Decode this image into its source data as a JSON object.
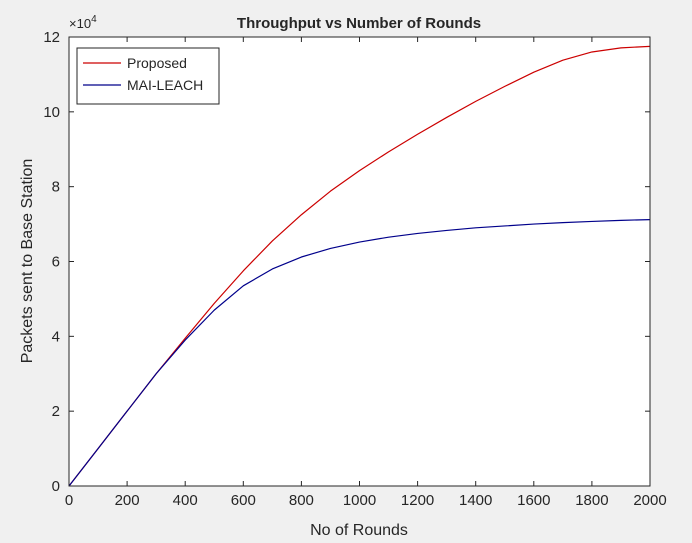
{
  "chart_data": {
    "type": "line",
    "title": "Throughput vs Number of Rounds",
    "xlabel": "No of Rounds",
    "ylabel": "Packets sent to Base Station",
    "y_exponent_base": "10",
    "y_exponent_power": "4",
    "xlim": [
      0,
      2000
    ],
    "ylim": [
      0,
      120000
    ],
    "x_ticks": [
      0,
      200,
      400,
      600,
      800,
      1000,
      1200,
      1400,
      1600,
      1800,
      2000
    ],
    "x_tick_labels": [
      "0",
      "200",
      "400",
      "600",
      "800",
      "1000",
      "1200",
      "1400",
      "1600",
      "1800",
      "2000"
    ],
    "y_ticks": [
      0,
      20000,
      40000,
      60000,
      80000,
      100000,
      120000
    ],
    "y_tick_labels": [
      "0",
      "2",
      "4",
      "6",
      "8",
      "10",
      "12"
    ],
    "grid": false,
    "legend_position": "top-left",
    "x": [
      0,
      100,
      200,
      300,
      400,
      500,
      600,
      700,
      800,
      900,
      1000,
      1100,
      1200,
      1300,
      1400,
      1500,
      1600,
      1700,
      1800,
      1900,
      2000
    ],
    "series": [
      {
        "name": "Proposed",
        "color": "#cc0000",
        "values": [
          0,
          10000,
          20000,
          30000,
          39500,
          48800,
          57500,
          65500,
          72500,
          78800,
          84300,
          89300,
          94000,
          98500,
          102800,
          106800,
          110600,
          113800,
          116000,
          117100,
          117500
        ]
      },
      {
        "name": "MAI-LEACH",
        "color": "#00008b",
        "values": [
          0,
          10000,
          20000,
          30000,
          39000,
          47000,
          53500,
          58000,
          61200,
          63500,
          65200,
          66500,
          67500,
          68300,
          69000,
          69500,
          70000,
          70400,
          70700,
          71000,
          71200
        ]
      }
    ]
  }
}
